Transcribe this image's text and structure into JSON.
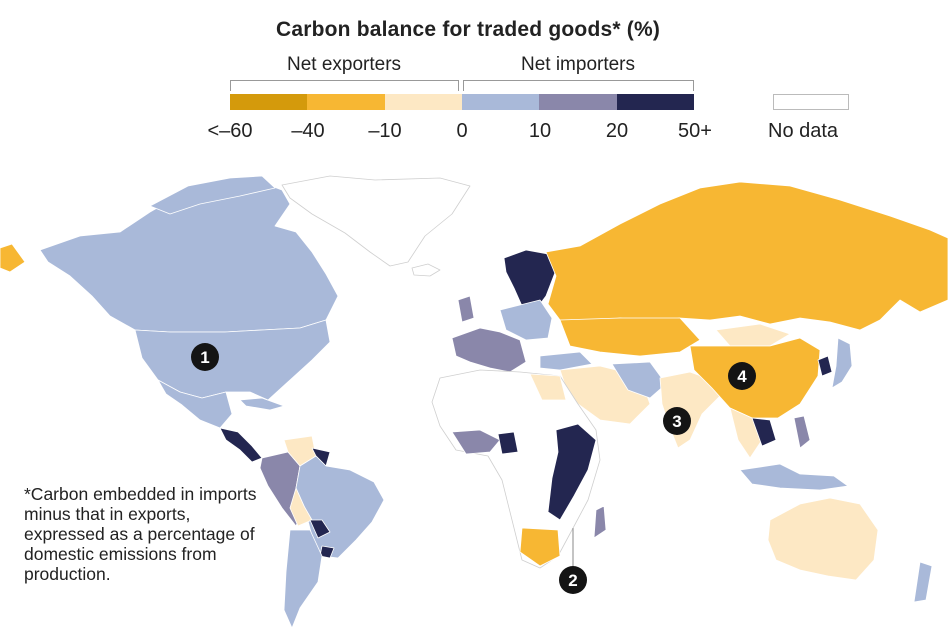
{
  "title": "Carbon balance for traded goods* (%)",
  "legend": {
    "group_exporters": "Net exporters",
    "group_importers": "Net importers",
    "bins": [
      {
        "range": "<-60 to -40",
        "color": "#d49a0c"
      },
      {
        "range": "-40 to -10",
        "color": "#f7b733"
      },
      {
        "range": "-10 to 0",
        "color": "#fde8c4"
      },
      {
        "range": "0 to 10",
        "color": "#a9b9d9"
      },
      {
        "range": "10 to 20",
        "color": "#8a87aa"
      },
      {
        "range": "20 to 50+",
        "color": "#232650"
      }
    ],
    "ticks": [
      "<–60",
      "–40",
      "–10",
      "0",
      "10",
      "20",
      "50+"
    ],
    "no_data_label": "No data",
    "no_data_color": "#ffffff"
  },
  "markers": [
    "1",
    "2",
    "3",
    "4"
  ],
  "footnote": "*Carbon embedded in imports minus that in exports, expressed as a percentage of domestic emissions from production."
}
